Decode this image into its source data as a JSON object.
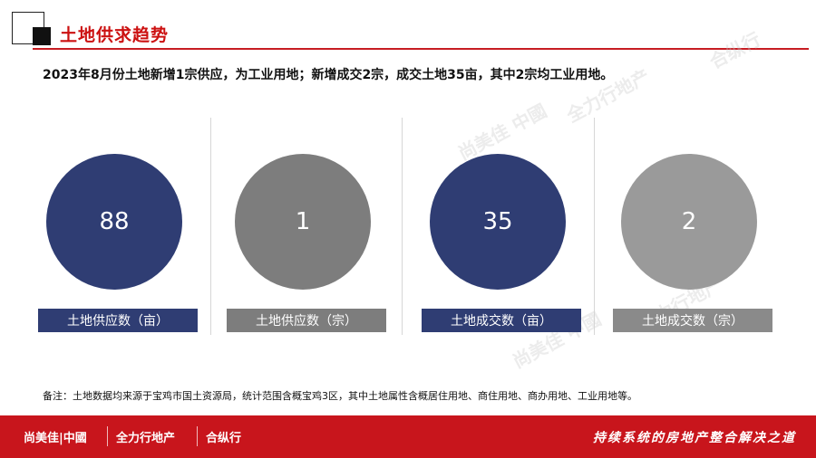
{
  "header": {
    "title": "土地供求趋势",
    "summary": "2023年8月份土地新增1宗供应，为工业用地；新增成交2宗，成交土地35亩，其中2宗均工业用地。"
  },
  "stats": [
    {
      "value": "88",
      "label": "土地供应数（亩）",
      "color": "#2f3d73"
    },
    {
      "value": "1",
      "label": "土地供应数（宗）",
      "color": "#7d7d7d"
    },
    {
      "value": "35",
      "label": "土地成交数（亩）",
      "color": "#2f3d73"
    },
    {
      "value": "2",
      "label": "土地成交数（宗）",
      "color": "#9a9a9a"
    }
  ],
  "note": "备注：土地数据均来源于宝鸡市国土资源局，统计范围含概宝鸡3区，其中土地属性含概居住用地、商住用地、商办用地、工业用地等。",
  "footer": {
    "brand1": "尚美佳|中國",
    "brand2": "全力行地产",
    "brand3": "合纵行",
    "slogan": "持续系统的房地产整合解决之道"
  },
  "watermarks": [
    "尚美佳 中國",
    "全力行地产",
    "合纵行",
    "尚美佳 中國",
    "全力行地产"
  ],
  "colors": {
    "accent": "#c71c22",
    "navy": "#2f3d73",
    "gray": "#7d7d7d"
  }
}
